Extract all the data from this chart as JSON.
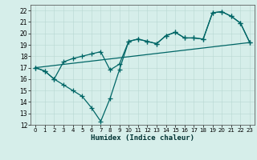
{
  "title": "",
  "xlabel": "Humidex (Indice chaleur)",
  "xlim": [
    -0.5,
    23.5
  ],
  "ylim": [
    12,
    22.5
  ],
  "yticks": [
    12,
    13,
    14,
    15,
    16,
    17,
    18,
    19,
    20,
    21,
    22
  ],
  "xticks": [
    0,
    1,
    2,
    3,
    4,
    5,
    6,
    7,
    8,
    9,
    10,
    11,
    12,
    13,
    14,
    15,
    16,
    17,
    18,
    19,
    20,
    21,
    22,
    23
  ],
  "bg_color": "#d6eeea",
  "line_color": "#006666",
  "line_width": 0.9,
  "marker": "+",
  "marker_size": 4,
  "marker_lw": 0.9,
  "trend_line": {
    "x": [
      0,
      23
    ],
    "y": [
      17.0,
      19.2
    ]
  },
  "upper_curve": {
    "x": [
      0,
      1,
      2,
      3,
      4,
      5,
      6,
      7,
      8,
      9,
      10,
      11,
      12,
      13,
      14,
      15,
      16,
      17,
      18,
      19,
      20,
      21,
      22,
      23
    ],
    "y": [
      17.0,
      16.7,
      16.0,
      17.5,
      17.8,
      18.0,
      18.2,
      18.4,
      16.8,
      17.3,
      19.3,
      19.5,
      19.3,
      19.1,
      19.8,
      20.1,
      19.6,
      19.6,
      19.5,
      21.8,
      21.9,
      21.5,
      20.9,
      19.2
    ]
  },
  "lower_curve": {
    "x": [
      0,
      1,
      2,
      3,
      4,
      5,
      6,
      7,
      8,
      9,
      10,
      11,
      12,
      13,
      14,
      15,
      16,
      17,
      18,
      19,
      20,
      21,
      22,
      23
    ],
    "y": [
      17.0,
      16.7,
      16.0,
      15.5,
      15.0,
      14.5,
      13.5,
      12.3,
      14.3,
      16.8,
      19.3,
      19.5,
      19.3,
      19.1,
      19.8,
      20.1,
      19.6,
      19.6,
      19.5,
      21.8,
      21.9,
      21.5,
      20.9,
      19.2
    ]
  }
}
